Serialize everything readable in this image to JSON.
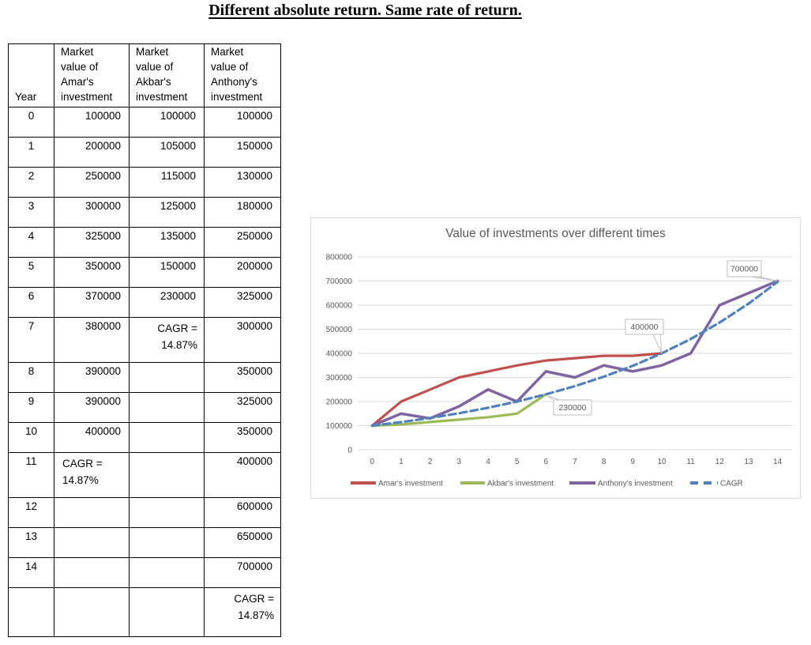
{
  "page_title": "Different absolute return. Same rate of return.",
  "table": {
    "headers": [
      "Year",
      "Market\nvalue of\nAmar's\ninvestment",
      "Market\nvalue of\nAkbar's\ninvestment",
      "Market\nvalue of\nAnthony's\ninvestment"
    ],
    "rows": [
      [
        "0",
        "100000",
        "100000",
        "100000"
      ],
      [
        "1",
        "200000",
        "105000",
        "150000"
      ],
      [
        "2",
        "250000",
        "115000",
        "130000"
      ],
      [
        "3",
        "300000",
        "125000",
        "180000"
      ],
      [
        "4",
        "325000",
        "135000",
        "250000"
      ],
      [
        "5",
        "350000",
        "150000",
        "200000"
      ],
      [
        "6",
        "370000",
        "230000",
        "325000"
      ],
      [
        "7",
        "380000",
        "CAGR =\n14.87%",
        "300000"
      ],
      [
        "8",
        "390000",
        "",
        "350000"
      ],
      [
        "9",
        "390000",
        "",
        "325000"
      ],
      [
        "10",
        "400000",
        "",
        "350000"
      ],
      [
        "11",
        "CAGR =\n14.87%",
        "",
        "400000"
      ],
      [
        "12",
        "",
        "",
        "600000"
      ],
      [
        "13",
        "",
        "",
        "650000"
      ],
      [
        "14",
        "",
        "",
        "700000"
      ],
      [
        "",
        "",
        "",
        "CAGR =\n14.87%"
      ]
    ]
  },
  "chart_data": {
    "type": "line",
    "title": "Value of investments over different times",
    "x": [
      0,
      1,
      2,
      3,
      4,
      5,
      6,
      7,
      8,
      9,
      10,
      11,
      12,
      13,
      14
    ],
    "ylim": [
      0,
      800000
    ],
    "ytick_step": 100000,
    "grid": true,
    "legend_position": "bottom",
    "series": [
      {
        "name": "Amar's investment",
        "color": "#C0504D",
        "dash": false,
        "values": [
          100000,
          200000,
          250000,
          300000,
          325000,
          350000,
          370000,
          380000,
          390000,
          390000,
          400000
        ]
      },
      {
        "name": "Akbar's investment",
        "color": "#9BBB59",
        "dash": false,
        "values": [
          100000,
          105000,
          115000,
          125000,
          135000,
          150000,
          230000
        ]
      },
      {
        "name": "Anthony's investment",
        "color": "#8064A2",
        "dash": false,
        "values": [
          100000,
          150000,
          130000,
          180000,
          250000,
          200000,
          325000,
          300000,
          350000,
          325000,
          350000,
          400000,
          600000,
          650000,
          700000
        ]
      },
      {
        "name": "CAGR",
        "color": "#4F81BD",
        "dash": true,
        "values": [
          100000,
          114870,
          131951,
          151572,
          174111,
          200001,
          229742,
          263904,
          303147,
          348224,
          400006,
          459446,
          527726,
          606199,
          696341
        ]
      }
    ],
    "callouts": [
      {
        "label": "700000",
        "series": 2,
        "year": 14
      },
      {
        "label": "400000",
        "series": 0,
        "year": 10
      },
      {
        "label": "230000",
        "series": 1,
        "year": 6
      }
    ]
  },
  "colors": {
    "grid": "#D9D9D9",
    "axis_text": "#595959",
    "chart_border": "#D9D9D9",
    "table_border": "#000000",
    "callout_border": "#BFBFBF"
  }
}
